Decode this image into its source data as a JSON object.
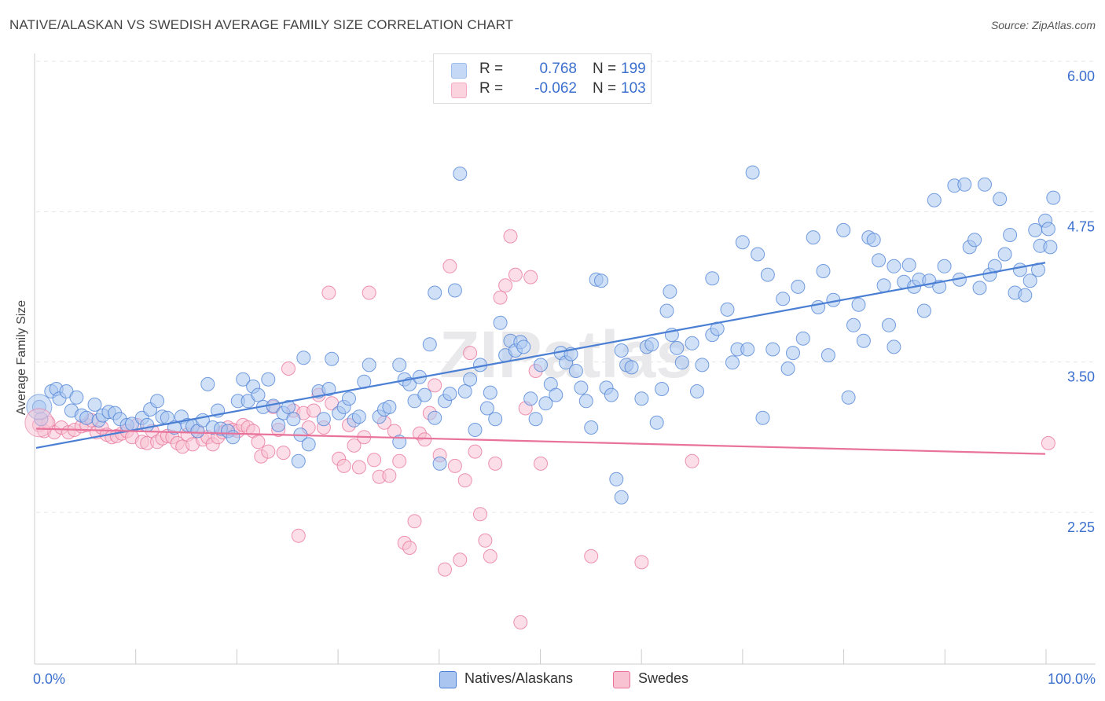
{
  "title": "NATIVE/ALASKAN VS SWEDISH AVERAGE FAMILY SIZE CORRELATION CHART",
  "source": "Source: ZipAtlas.com",
  "watermark": "ZIPatlas",
  "legend": {
    "rows": [
      {
        "r_label": "R =",
        "r_value": "0.768",
        "n_label": "N =",
        "n_value": "199",
        "color": "#9dbcea"
      },
      {
        "r_label": "R =",
        "r_value": "-0.062",
        "n_label": "N =",
        "n_value": "103",
        "color": "#f4a9c0"
      }
    ]
  },
  "bottom_legend": [
    {
      "label": "Natives/Alaskans",
      "color": "#aac6f0"
    },
    {
      "label": "Swedes",
      "color": "#f8c2d3"
    }
  ],
  "chart_data": {
    "type": "scatter",
    "title": "NATIVE/ALASKAN VS SWEDISH AVERAGE FAMILY SIZE CORRELATION CHART",
    "xlabel": "",
    "ylabel": "Average Family Size",
    "xlim": [
      0,
      100
    ],
    "ylim": [
      1.5,
      6.2
    ],
    "x_tick_labels": [
      "0.0%",
      "100.0%"
    ],
    "y_ticks": [
      2.25,
      3.5,
      4.75,
      6.0
    ],
    "y_tick_labels": [
      "2.25",
      "3.50",
      "4.75",
      "6.00"
    ],
    "grid": "horizontal dashed",
    "legend_position": "top-center",
    "series": [
      {
        "name": "Natives/Alaskans",
        "color": "#4a7fd4",
        "fill": "#aac6f0",
        "trend": {
          "x": [
            0,
            100
          ],
          "y": [
            2.91,
            4.45
          ]
        },
        "points": [
          [
            0.3,
            3.25
          ],
          [
            0.5,
            3.15
          ],
          [
            1.5,
            3.38
          ],
          [
            2,
            3.4
          ],
          [
            2.3,
            3.32
          ],
          [
            3,
            3.38
          ],
          [
            3.5,
            3.22
          ],
          [
            4,
            3.33
          ],
          [
            4.5,
            3.18
          ],
          [
            5,
            3.16
          ],
          [
            5.8,
            3.27
          ],
          [
            6.2,
            3.14
          ],
          [
            6.6,
            3.18
          ],
          [
            7.2,
            3.21
          ],
          [
            7.8,
            3.2
          ],
          [
            8.3,
            3.15
          ],
          [
            9,
            3.1
          ],
          [
            9.5,
            3.11
          ],
          [
            10.5,
            3.16
          ],
          [
            11,
            3.1
          ],
          [
            11.3,
            3.23
          ],
          [
            12,
            3.3
          ],
          [
            12.5,
            3.17
          ],
          [
            13,
            3.16
          ],
          [
            13.7,
            3.08
          ],
          [
            14.4,
            3.17
          ],
          [
            15,
            3.1
          ],
          [
            15.5,
            3.09
          ],
          [
            16,
            3.05
          ],
          [
            16.5,
            3.14
          ],
          [
            17,
            3.44
          ],
          [
            17.5,
            3.08
          ],
          [
            18,
            3.22
          ],
          [
            18.3,
            3.07
          ],
          [
            19,
            3.05
          ],
          [
            19.5,
            3.0
          ],
          [
            20,
            3.3
          ],
          [
            20.5,
            3.48
          ],
          [
            21,
            3.3
          ],
          [
            21.5,
            3.42
          ],
          [
            22,
            3.35
          ],
          [
            22.5,
            3.25
          ],
          [
            23,
            3.48
          ],
          [
            23.5,
            3.26
          ],
          [
            24,
            3.1
          ],
          [
            24.5,
            3.2
          ],
          [
            25,
            3.25
          ],
          [
            25.5,
            3.15
          ],
          [
            26,
            2.8
          ],
          [
            26.2,
            3.02
          ],
          [
            26.5,
            3.66
          ],
          [
            27,
            2.94
          ],
          [
            28,
            3.38
          ],
          [
            28.5,
            3.15
          ],
          [
            29,
            3.4
          ],
          [
            29.3,
            3.65
          ],
          [
            30,
            3.2
          ],
          [
            30.5,
            3.25
          ],
          [
            31,
            3.32
          ],
          [
            31.5,
            3.14
          ],
          [
            32,
            3.17
          ],
          [
            32.5,
            3.46
          ],
          [
            33,
            3.6
          ],
          [
            34,
            3.17
          ],
          [
            34.5,
            3.23
          ],
          [
            35,
            3.25
          ],
          [
            36,
            2.96
          ],
          [
            36,
            3.6
          ],
          [
            36.5,
            3.48
          ],
          [
            37,
            3.44
          ],
          [
            37.5,
            3.3
          ],
          [
            38,
            3.5
          ],
          [
            38.5,
            3.35
          ],
          [
            39,
            3.77
          ],
          [
            39.5,
            3.16
          ],
          [
            39.5,
            4.2
          ],
          [
            40,
            2.78
          ],
          [
            40.5,
            3.3
          ],
          [
            41,
            3.36
          ],
          [
            41.5,
            4.22
          ],
          [
            42,
            5.19
          ],
          [
            42.5,
            3.38
          ],
          [
            43,
            3.48
          ],
          [
            43.5,
            3.06
          ],
          [
            44,
            3.6
          ],
          [
            44.7,
            3.24
          ],
          [
            45,
            3.37
          ],
          [
            45.5,
            3.15
          ],
          [
            46,
            3.95
          ],
          [
            46.5,
            3.68
          ],
          [
            47,
            3.8
          ],
          [
            47.5,
            3.72
          ],
          [
            48,
            3.79
          ],
          [
            48.3,
            3.75
          ],
          [
            49,
            3.32
          ],
          [
            49.5,
            3.15
          ],
          [
            50,
            3.6
          ],
          [
            50.5,
            3.28
          ],
          [
            51,
            3.44
          ],
          [
            51.5,
            3.35
          ],
          [
            52,
            3.7
          ],
          [
            52.5,
            3.62
          ],
          [
            53,
            3.69
          ],
          [
            53.5,
            3.55
          ],
          [
            54,
            3.41
          ],
          [
            54.5,
            3.3
          ],
          [
            55,
            3.08
          ],
          [
            55.5,
            4.31
          ],
          [
            56,
            4.3
          ],
          [
            56.5,
            3.41
          ],
          [
            57,
            3.35
          ],
          [
            57.5,
            2.65
          ],
          [
            58,
            2.5
          ],
          [
            58,
            3.72
          ],
          [
            58.5,
            3.6
          ],
          [
            59,
            3.58
          ],
          [
            60,
            3.32
          ],
          [
            60.5,
            3.75
          ],
          [
            61,
            3.77
          ],
          [
            61.5,
            3.12
          ],
          [
            62,
            3.4
          ],
          [
            62.5,
            4.05
          ],
          [
            62.8,
            4.21
          ],
          [
            63,
            3.85
          ],
          [
            63.5,
            3.74
          ],
          [
            64,
            3.62
          ],
          [
            65,
            3.78
          ],
          [
            65.5,
            3.38
          ],
          [
            66,
            3.6
          ],
          [
            67,
            4.32
          ],
          [
            67,
            3.85
          ],
          [
            67.5,
            3.9
          ],
          [
            68.5,
            4.06
          ],
          [
            69,
            3.62
          ],
          [
            69.5,
            3.73
          ],
          [
            70,
            4.62
          ],
          [
            70.5,
            3.73
          ],
          [
            71,
            5.2
          ],
          [
            71.5,
            4.52
          ],
          [
            72,
            3.16
          ],
          [
            72.5,
            4.35
          ],
          [
            73,
            3.73
          ],
          [
            74,
            4.15
          ],
          [
            74.5,
            3.57
          ],
          [
            75,
            3.7
          ],
          [
            75.5,
            4.25
          ],
          [
            76,
            3.82
          ],
          [
            77,
            4.66
          ],
          [
            77.5,
            4.08
          ],
          [
            78,
            4.38
          ],
          [
            78.5,
            3.68
          ],
          [
            79,
            4.14
          ],
          [
            80,
            4.72
          ],
          [
            80.5,
            3.33
          ],
          [
            81,
            3.93
          ],
          [
            81.5,
            4.1
          ],
          [
            82,
            3.8
          ],
          [
            82.5,
            4.66
          ],
          [
            83,
            4.64
          ],
          [
            83.5,
            4.47
          ],
          [
            84,
            4.26
          ],
          [
            84.5,
            3.93
          ],
          [
            85,
            3.75
          ],
          [
            85,
            4.42
          ],
          [
            86,
            4.29
          ],
          [
            86.5,
            4.43
          ],
          [
            87,
            4.25
          ],
          [
            87.5,
            4.31
          ],
          [
            88,
            4.05
          ],
          [
            88.5,
            4.3
          ],
          [
            89,
            4.97
          ],
          [
            89.5,
            4.25
          ],
          [
            90,
            4.42
          ],
          [
            91,
            5.09
          ],
          [
            91.5,
            4.31
          ],
          [
            92,
            5.1
          ],
          [
            92.5,
            4.58
          ],
          [
            93,
            4.64
          ],
          [
            93.5,
            4.24
          ],
          [
            94,
            5.1
          ],
          [
            94.5,
            4.35
          ],
          [
            95,
            4.42
          ],
          [
            95.5,
            4.98
          ],
          [
            96,
            4.52
          ],
          [
            96.5,
            4.68
          ],
          [
            97,
            4.2
          ],
          [
            97.5,
            4.39
          ],
          [
            98,
            4.18
          ],
          [
            98.5,
            4.3
          ],
          [
            99,
            4.72
          ],
          [
            99.3,
            4.39
          ],
          [
            99.5,
            4.59
          ],
          [
            100,
            4.8
          ],
          [
            100.3,
            4.73
          ],
          [
            100.5,
            4.58
          ],
          [
            100.8,
            4.99
          ]
        ]
      },
      {
        "name": "Swedes",
        "color": "#e8729a",
        "fill": "#f8c2d3",
        "trend": {
          "x": [
            0,
            100
          ],
          "y": [
            3.07,
            2.86
          ]
        },
        "points": [
          [
            0.3,
            3.1
          ],
          [
            0.8,
            3.05
          ],
          [
            1.2,
            3.12
          ],
          [
            1.8,
            3.04
          ],
          [
            2.5,
            3.08
          ],
          [
            3.2,
            3.04
          ],
          [
            3.8,
            3.06
          ],
          [
            4.5,
            3.09
          ],
          [
            5,
            3.1
          ],
          [
            5.5,
            3.14
          ],
          [
            6,
            3.04
          ],
          [
            6.5,
            3.08
          ],
          [
            7,
            3.02
          ],
          [
            7.5,
            3.0
          ],
          [
            8,
            3.01
          ],
          [
            8.5,
            3.03
          ],
          [
            9,
            3.05
          ],
          [
            9.5,
            3.0
          ],
          [
            10,
            3.1
          ],
          [
            10.5,
            2.96
          ],
          [
            11,
            2.95
          ],
          [
            11.5,
            3.05
          ],
          [
            12,
            2.96
          ],
          [
            12.5,
            2.99
          ],
          [
            13,
            3.01
          ],
          [
            13.5,
            3.0
          ],
          [
            14,
            2.95
          ],
          [
            14.5,
            2.92
          ],
          [
            15,
            3.02
          ],
          [
            15.5,
            2.94
          ],
          [
            16,
            3.05
          ],
          [
            16.5,
            2.98
          ],
          [
            17,
            3.0
          ],
          [
            17.5,
            2.94
          ],
          [
            18,
            3.0
          ],
          [
            18.5,
            3.04
          ],
          [
            19,
            3.08
          ],
          [
            19.5,
            3.06
          ],
          [
            20,
            3.05
          ],
          [
            20.5,
            3.1
          ],
          [
            21,
            3.08
          ],
          [
            21.5,
            3.05
          ],
          [
            22,
            2.96
          ],
          [
            22.3,
            2.84
          ],
          [
            23,
            2.88
          ],
          [
            23.5,
            3.25
          ],
          [
            24,
            3.06
          ],
          [
            24.5,
            2.87
          ],
          [
            25,
            3.57
          ],
          [
            25.5,
            3.22
          ],
          [
            26,
            2.18
          ],
          [
            26.5,
            3.2
          ],
          [
            27,
            3.08
          ],
          [
            27.5,
            3.22
          ],
          [
            28,
            3.35
          ],
          [
            28.5,
            3.08
          ],
          [
            29,
            4.2
          ],
          [
            29.3,
            3.28
          ],
          [
            30,
            2.82
          ],
          [
            30.5,
            2.76
          ],
          [
            31,
            3.1
          ],
          [
            31.5,
            2.93
          ],
          [
            32,
            2.75
          ],
          [
            32.5,
            3.0
          ],
          [
            33,
            4.2
          ],
          [
            33.5,
            2.81
          ],
          [
            34,
            2.67
          ],
          [
            34.5,
            3.12
          ],
          [
            35,
            2.68
          ],
          [
            35.5,
            3.05
          ],
          [
            36,
            2.8
          ],
          [
            36.5,
            2.12
          ],
          [
            37,
            2.08
          ],
          [
            37.5,
            2.3
          ],
          [
            38,
            3.03
          ],
          [
            38.5,
            2.98
          ],
          [
            39,
            3.2
          ],
          [
            39.5,
            3.43
          ],
          [
            40,
            2.85
          ],
          [
            40.5,
            1.9
          ],
          [
            41,
            4.42
          ],
          [
            41.5,
            2.76
          ],
          [
            42,
            1.98
          ],
          [
            42.5,
            2.64
          ],
          [
            43,
            3.7
          ],
          [
            43.5,
            2.88
          ],
          [
            44,
            2.36
          ],
          [
            44.5,
            2.14
          ],
          [
            45,
            2.01
          ],
          [
            45.5,
            2.78
          ],
          [
            46,
            4.16
          ],
          [
            46.5,
            4.26
          ],
          [
            47,
            4.67
          ],
          [
            47.5,
            4.35
          ],
          [
            48,
            1.46
          ],
          [
            48.5,
            3.24
          ],
          [
            49,
            4.33
          ],
          [
            49.5,
            3.55
          ],
          [
            50,
            2.78
          ],
          [
            55,
            2.01
          ],
          [
            60,
            1.96
          ],
          [
            65,
            2.8
          ],
          [
            100.3,
            2.95
          ]
        ]
      }
    ]
  }
}
